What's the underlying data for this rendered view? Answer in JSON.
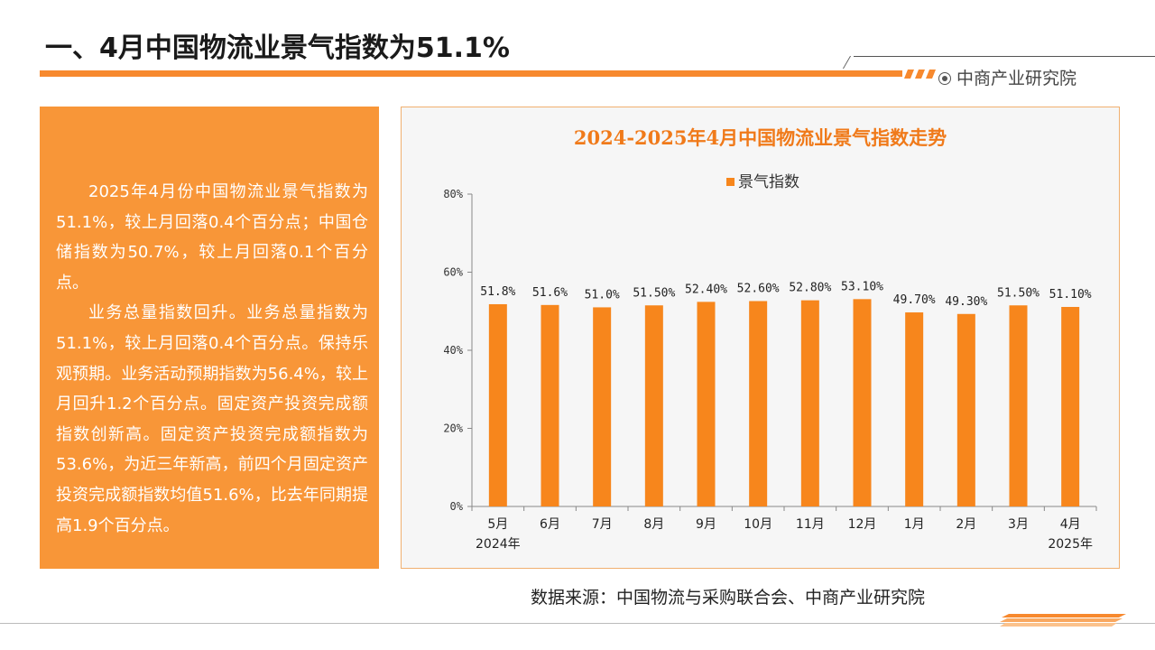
{
  "page": {
    "title": "一、4月中国物流业景气指数为51.1%",
    "brand": "中商产业研究院",
    "source": "数据来源：中国物流与采购联合会、中商产业研究院"
  },
  "left_panel": {
    "paragraph1": "2025年4月份中国物流业景气指数为51.1%，较上月回落0.4个百分点；中国仓储指数为50.7%，较上月回落0.1个百分点。",
    "paragraph2": "业务总量指数回升。业务总量指数为51.1%，较上月回落0.4个百分点。保持乐观预期。业务活动预期指数为56.4%，较上月回升1.2个百分点。固定资产投资完成额指数创新高。固定资产投资完成额指数为53.6%，为近三年新高，前四个月固定资产投资完成额指数均值51.6%，比去年同期提高1.9个百分点。"
  },
  "colors": {
    "accent": "#f7892e",
    "bar": "#f7861c",
    "panel": "#f89638",
    "chart_title": "#f07a1a"
  },
  "chart_data": {
    "type": "bar",
    "title": "2024-2025年4月中国物流业景气指数走势",
    "categories": [
      "5月",
      "6月",
      "7月",
      "8月",
      "9月",
      "10月",
      "11月",
      "12月",
      "1月",
      "2月",
      "3月",
      "4月"
    ],
    "year_labels": [
      "2024年",
      "",
      "",
      "",
      "",
      "",
      "",
      "",
      "",
      "",
      "",
      "2025年"
    ],
    "series": [
      {
        "name": "景气指数",
        "values": [
          51.8,
          51.6,
          51.0,
          51.5,
          52.4,
          52.6,
          52.8,
          53.1,
          49.7,
          49.3,
          51.5,
          51.1
        ]
      }
    ],
    "data_labels": [
      "51.8%",
      "51.6%",
      "51.0%",
      "51.50%",
      "52.40%",
      "52.60%",
      "52.80%",
      "53.10%",
      "49.70%",
      "49.30%",
      "51.50%",
      "51.10%"
    ],
    "ylim": [
      0,
      80
    ],
    "yticks": [
      0,
      20,
      40,
      60,
      80
    ],
    "ytick_labels": [
      "0%",
      "20%",
      "40%",
      "60%",
      "80%"
    ],
    "xlabel": "",
    "ylabel": "",
    "legend_position": "top-center",
    "grid": false
  }
}
